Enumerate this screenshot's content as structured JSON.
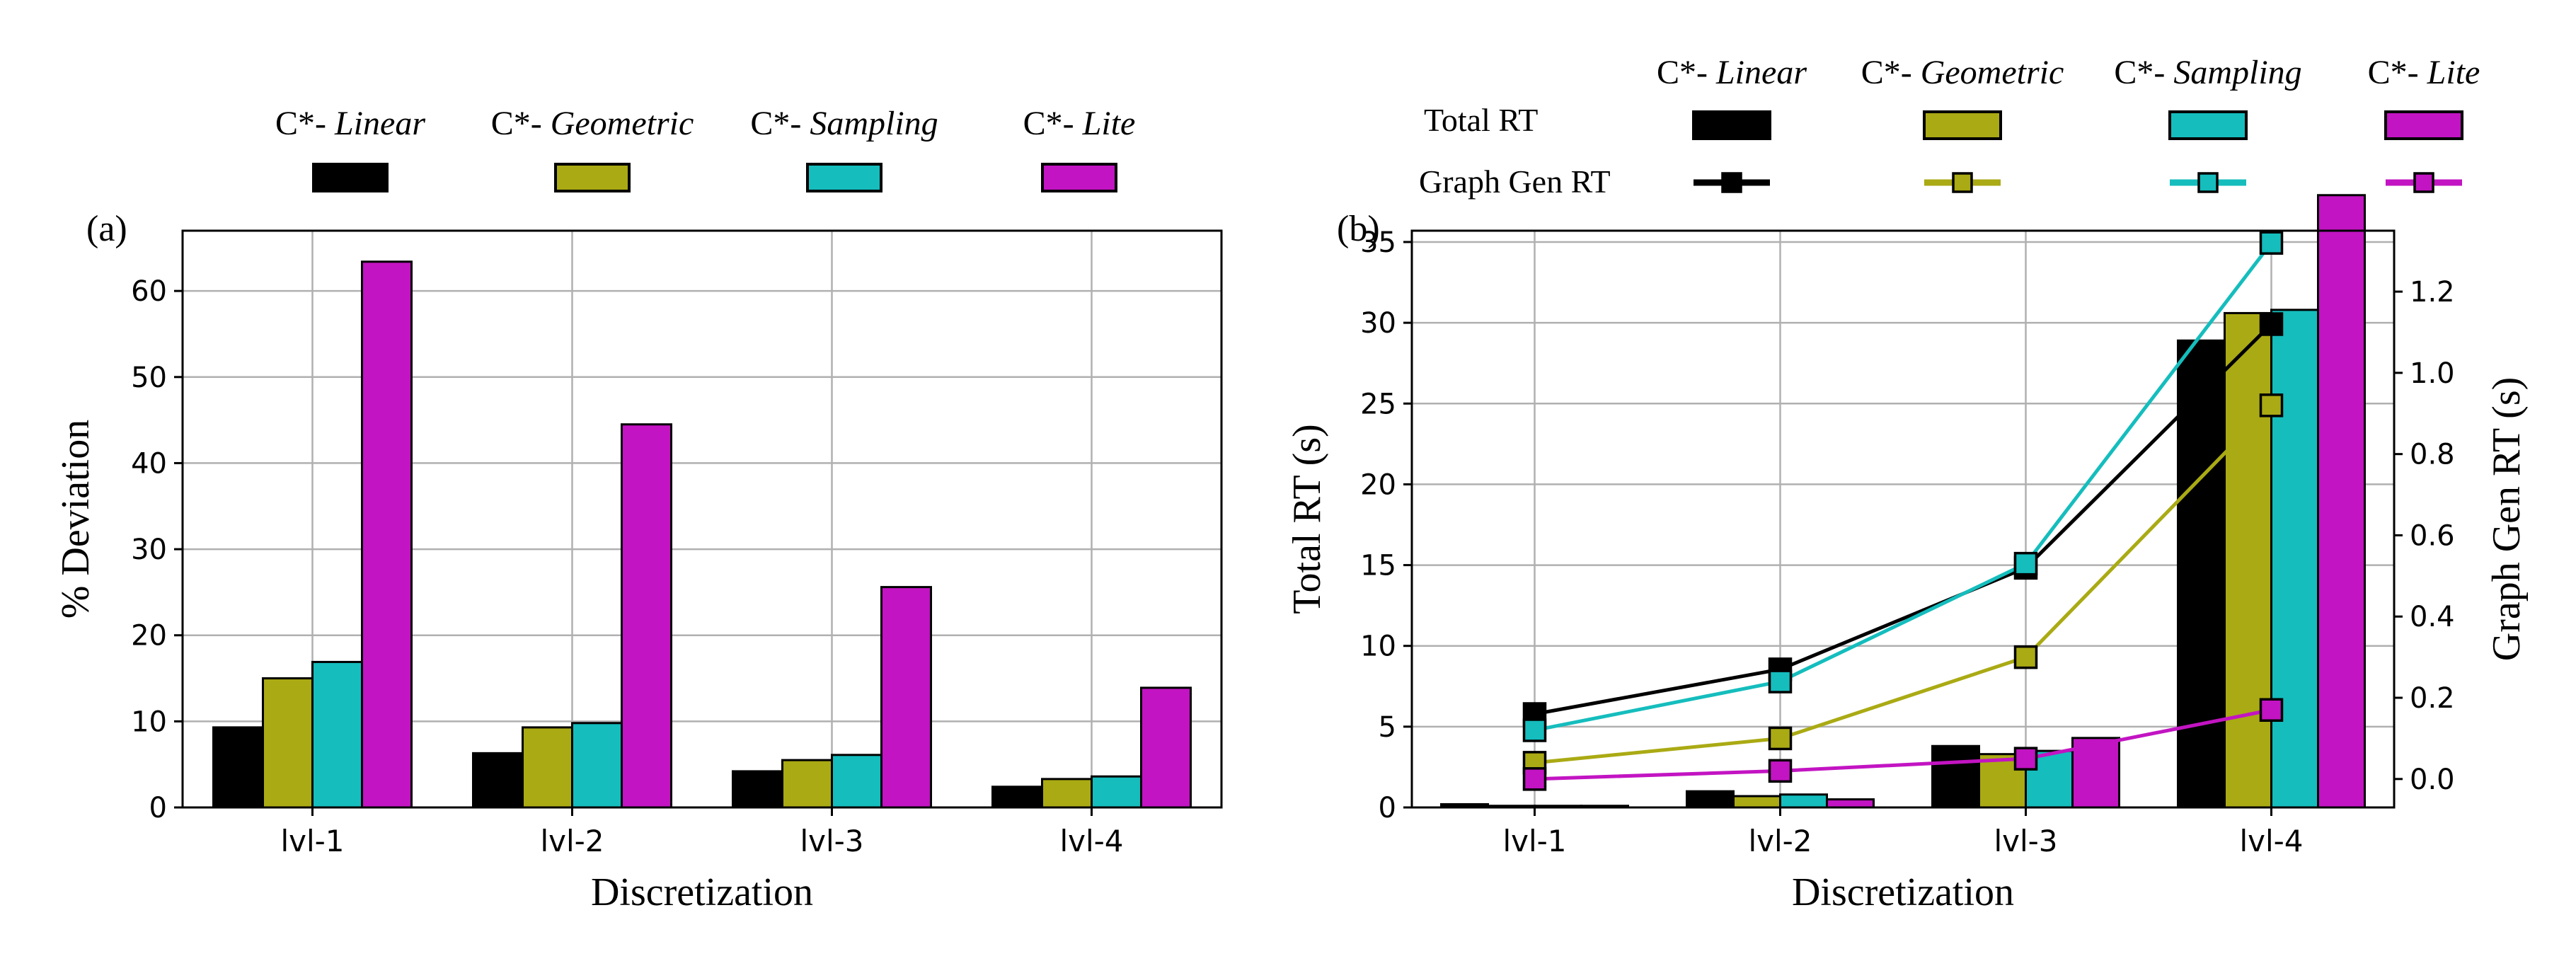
{
  "colors": {
    "linear": "#000000",
    "geometric": "#aaaa14",
    "sampling": "#15bdbd",
    "lite": "#c214c2",
    "edge": "#000000",
    "grid": "#b0b0b0"
  },
  "chart_data": [
    {
      "type": "bar",
      "panel_label": "(a)",
      "title": "",
      "xlabel": "Discretization",
      "ylabel": "% Deviation",
      "categories": [
        "lvl-1",
        "lvl-2",
        "lvl-3",
        "lvl-4"
      ],
      "ylim": [
        0,
        67
      ],
      "yticks": [
        0,
        10,
        20,
        30,
        40,
        50,
        60
      ],
      "grid": true,
      "legend_position": "top",
      "series": [
        {
          "name": "C*- Linear",
          "color_key": "linear",
          "values": [
            9.3,
            6.3,
            4.2,
            2.4
          ]
        },
        {
          "name": "C*- Geometric",
          "color_key": "geometric",
          "values": [
            15.0,
            9.3,
            5.5,
            3.3
          ]
        },
        {
          "name": "C*- Sampling",
          "color_key": "sampling",
          "values": [
            16.9,
            9.8,
            6.1,
            3.6
          ]
        },
        {
          "name": "C*- Lite",
          "color_key": "lite",
          "values": [
            63.4,
            44.5,
            25.6,
            13.9
          ]
        }
      ]
    },
    {
      "type": "bar+line",
      "panel_label": "(b)",
      "title": "",
      "xlabel": "Discretization",
      "ylabel": "Total RT (s)",
      "ylabel_right": "Graph Gen RT (s)",
      "categories": [
        "lvl-1",
        "lvl-2",
        "lvl-3",
        "lvl-4"
      ],
      "ylim": [
        0,
        35.7
      ],
      "yticks": [
        0,
        5,
        10,
        15,
        20,
        25,
        30,
        35
      ],
      "ylim_right": [
        -0.07,
        1.35
      ],
      "yticks_right": [
        0.0,
        0.2,
        0.4,
        0.6,
        0.8,
        1.0,
        1.2
      ],
      "ytick_labels_right": [
        "0.0",
        "0.2",
        "0.4",
        "0.6",
        "0.8",
        "1.0",
        "1.2"
      ],
      "grid": true,
      "legend_position": "top",
      "legend_rows": [
        "Total RT",
        "Graph Gen RT"
      ],
      "series": [
        {
          "name": "C*- Linear",
          "color_key": "linear",
          "total_rt": [
            0.2,
            1.0,
            3.8,
            28.9
          ],
          "graph_gen_rt": [
            0.16,
            0.27,
            0.52,
            1.12
          ]
        },
        {
          "name": "C*- Geometric",
          "color_key": "geometric",
          "total_rt": [
            0.1,
            0.7,
            3.3,
            30.6
          ],
          "graph_gen_rt": [
            0.04,
            0.1,
            0.3,
            0.92
          ]
        },
        {
          "name": "C*- Sampling",
          "color_key": "sampling",
          "total_rt": [
            0.1,
            0.8,
            3.5,
            30.8
          ],
          "graph_gen_rt": [
            0.12,
            0.24,
            0.53,
            1.32
          ]
        },
        {
          "name": "C*- Lite",
          "color_key": "lite",
          "total_rt": [
            0.1,
            0.5,
            4.3,
            37.9
          ],
          "graph_gen_rt": [
            0.0,
            0.02,
            0.05,
            0.17
          ]
        }
      ]
    }
  ]
}
